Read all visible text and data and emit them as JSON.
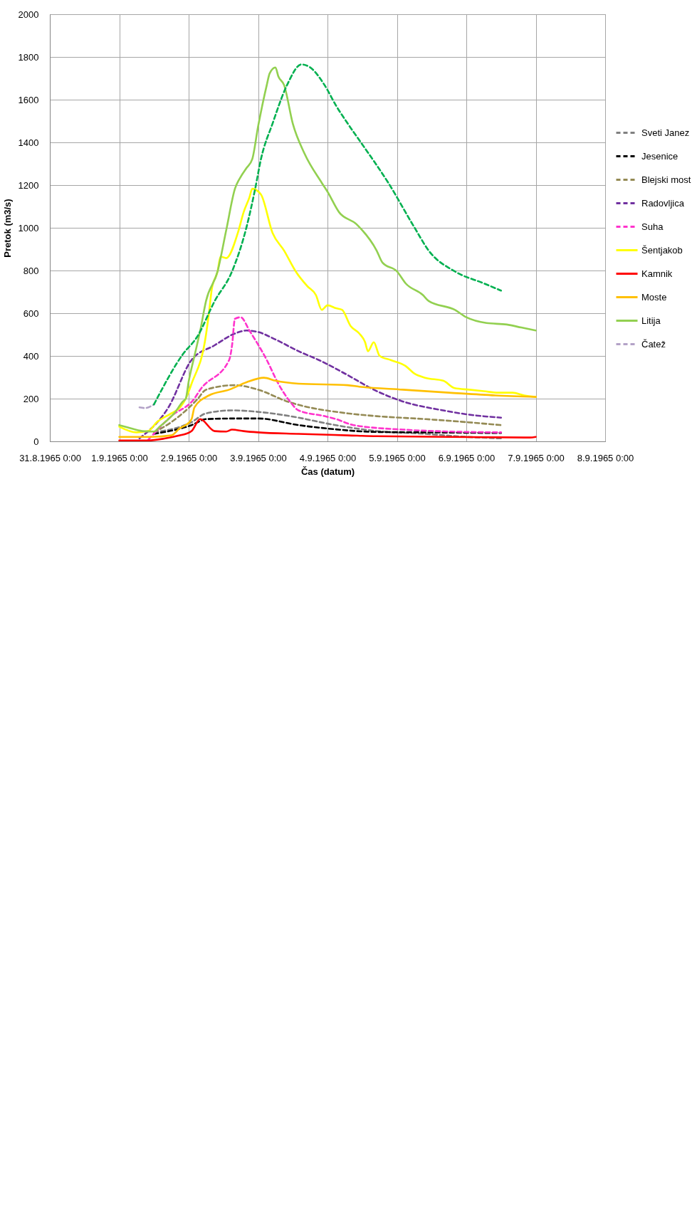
{
  "chart_data": {
    "type": "line",
    "xlabel": "Čas (datum)",
    "ylabel": "Pretok (m3/s)",
    "xlim": [
      "1965-08-31T00:00",
      "1965-09-08T00:00"
    ],
    "xticks": [
      {
        "value": "1965-08-31T00:00",
        "label": "31.8.1965 0:00"
      },
      {
        "value": "1965-09-01T00:00",
        "label": "1.9.1965 0:00"
      },
      {
        "value": "1965-09-02T00:00",
        "label": "2.9.1965 0:00"
      },
      {
        "value": "1965-09-03T00:00",
        "label": "3.9.1965 0:00"
      },
      {
        "value": "1965-09-04T00:00",
        "label": "4.9.1965 0:00"
      },
      {
        "value": "1965-09-05T00:00",
        "label": "5.9.1965 0:00"
      },
      {
        "value": "1965-09-06T00:00",
        "label": "6.9.1965 0:00"
      },
      {
        "value": "1965-09-07T00:00",
        "label": "7.9.1965 0:00"
      },
      {
        "value": "1965-09-08T00:00",
        "label": "8.9.1965 0:00"
      }
    ],
    "ylim": [
      0,
      2000
    ],
    "yticks": [
      0,
      200,
      400,
      600,
      800,
      1000,
      1200,
      1400,
      1600,
      1800,
      2000
    ],
    "grid": true,
    "legend": "right",
    "series": [
      {
        "name": "Sveti Janez",
        "color": "#808080",
        "line_style": "dashed",
        "x": [
          "1965-09-01T12:00",
          "1965-09-02T01:00",
          "1965-09-02T06:00",
          "1965-09-02T15:00",
          "1965-09-03T00:00",
          "1965-09-03T14:00",
          "1965-09-04T00:00",
          "1965-09-04T17:00",
          "1965-09-05T10:00",
          "1965-09-06T00:00",
          "1965-09-06T12:00"
        ],
        "values": [
          42,
          90,
          131,
          145,
          138,
          111,
          83,
          48,
          35,
          21,
          14
        ]
      },
      {
        "name": "Jesenice",
        "color": "#000000",
        "line_style": "dashed",
        "x": [
          "1965-09-01T12:00",
          "1965-09-02T01:00",
          "1965-09-02T06:00",
          "1965-09-02T15:00",
          "1965-09-03T00:00",
          "1965-09-03T14:00",
          "1965-09-04T00:00",
          "1965-09-04T17:00",
          "1965-09-05T10:00",
          "1965-09-06T12:00"
        ],
        "values": [
          35,
          76,
          104,
          107,
          107,
          76,
          60,
          44,
          42,
          39
        ]
      },
      {
        "name": "Blejski most",
        "color": "#948a54",
        "line_style": "dashed",
        "x": [
          "1965-09-01T12:00",
          "1965-09-01T18:00",
          "1965-09-02T03:00",
          "1965-09-02T06:00",
          "1965-09-02T16:00",
          "1965-09-03T00:00",
          "1965-09-03T10:00",
          "1965-09-04T07:00",
          "1965-09-04T17:00",
          "1965-09-05T10:00",
          "1965-09-06T00:00",
          "1965-09-06T12:00"
        ],
        "values": [
          42,
          90,
          197,
          242,
          263,
          242,
          187,
          131,
          118,
          104,
          90,
          76
        ]
      },
      {
        "name": "Radovljica",
        "color": "#7030a0",
        "line_style": "dashed",
        "x": [
          "1965-09-01T07:00",
          "1965-09-01T17:00",
          "1965-09-02T01:00",
          "1965-09-02T09:00",
          "1965-09-02T16:00",
          "1965-09-02T20:00",
          "1965-09-03T00:00",
          "1965-09-03T06:00",
          "1965-09-03T14:00",
          "1965-09-03T21:00",
          "1965-09-04T07:00",
          "1965-09-04T16:00",
          "1965-09-05T02:00",
          "1965-09-05T16:00",
          "1965-09-06T01:00",
          "1965-09-06T12:00"
        ],
        "values": [
          14,
          159,
          381,
          450,
          505,
          519,
          512,
          477,
          422,
          381,
          310,
          242,
          187,
          145,
          125,
          111
        ]
      },
      {
        "name": "Suha",
        "color": "#ff33cc",
        "line_style": "dashed",
        "x": [
          "1965-09-01T10:00",
          "1965-09-01T18:00",
          "1965-09-02T02:00",
          "1965-09-02T04:00",
          "1965-09-02T14:00",
          "1965-09-02T15:00",
          "1965-09-02T16:00",
          "1965-09-02T18:00",
          "1965-09-02T21:00",
          "1965-09-03T03:00",
          "1965-09-03T07:00",
          "1965-09-03T11:00",
          "1965-09-03T14:00",
          "1965-09-03T23:00",
          "1965-09-04T03:00",
          "1965-09-04T09:00",
          "1965-09-05T02:00",
          "1965-09-05T13:00",
          "1965-09-06T12:00"
        ],
        "values": [
          7,
          118,
          201,
          242,
          381,
          450,
          574,
          581,
          519,
          381,
          270,
          187,
          145,
          118,
          104,
          76,
          55,
          48,
          42
        ]
      },
      {
        "name": "Šentjakob",
        "color": "#ffff00",
        "line_style": "solid",
        "x": [
          "1965-09-01T00:00",
          "1965-09-01T06:00",
          "1965-09-01T10:00",
          "1965-09-01T13:00",
          "1965-09-01T18:00",
          "1965-09-01T21:00",
          "1965-09-01T23:00",
          "1965-09-02T01:00",
          "1965-09-02T06:00",
          "1965-09-02T07:00",
          "1965-09-02T08:00",
          "1965-09-02T10:00",
          "1965-09-02T11:00",
          "1965-09-02T13:00",
          "1965-09-02T17:00",
          "1965-09-02T19:00",
          "1965-09-02T21:00",
          "1965-09-02T22:00",
          "1965-09-03T01:00",
          "1965-09-03T05:00",
          "1965-09-03T09:00",
          "1965-09-03T13:00",
          "1965-09-03T17:00",
          "1965-09-03T20:00",
          "1965-09-03T22:00",
          "1965-09-04T00:00",
          "1965-09-04T03:00",
          "1965-09-04T05:00",
          "1965-09-04T08:00",
          "1965-09-04T11:00",
          "1965-09-04T13:00",
          "1965-09-04T14:00",
          "1965-09-04T16:00",
          "1965-09-04T18:00",
          "1965-09-04T22:00",
          "1965-09-05T03:00",
          "1965-09-05T06:00",
          "1965-09-05T10:00",
          "1965-09-05T16:00",
          "1965-09-05T20:00",
          "1965-09-06T01:00",
          "1965-09-06T06:00",
          "1965-09-06T11:00",
          "1965-09-06T16:00",
          "1965-09-06T20:00",
          "1965-09-07T00:00"
        ],
        "values": [
          69,
          42,
          48,
          90,
          131,
          159,
          200,
          270,
          500,
          600,
          713,
          796,
          865,
          858,
          976,
          1073,
          1142,
          1183,
          1156,
          976,
          893,
          796,
          727,
          685,
          616,
          637,
          623,
          616,
          540,
          505,
          464,
          422,
          464,
          401,
          380,
          353,
          318,
          297,
          284,
          249,
          242,
          235,
          228,
          228,
          215,
          208
        ]
      },
      {
        "name": "Kamnik",
        "color": "#ff0000",
        "line_style": "solid",
        "x": [
          "1965-09-01T00:00",
          "1965-09-01T10:00",
          "1965-09-01T16:00",
          "1965-09-01T21:00",
          "1965-09-01T23:00",
          "1965-09-02T01:00",
          "1965-09-02T04:00",
          "1965-09-02T09:00",
          "1965-09-02T13:00",
          "1965-09-02T15:00",
          "1965-09-02T19:00",
          "1965-09-03T00:00",
          "1965-09-03T14:00",
          "1965-09-04T07:00",
          "1965-09-04T17:00",
          "1965-09-05T18:00",
          "1965-09-06T22:00",
          "1965-09-07T00:00"
        ],
        "values": [
          4,
          4,
          14,
          28,
          35,
          48,
          104,
          48,
          46,
          55,
          48,
          42,
          35,
          28,
          24,
          21,
          18,
          21
        ]
      },
      {
        "name": "Moste",
        "color": "#ffc000",
        "line_style": "solid",
        "x": [
          "1965-09-01T00:00",
          "1965-09-01T11:00",
          "1965-09-01T18:00",
          "1965-09-01T21:00",
          "1965-09-01T23:00",
          "1965-09-02T01:00",
          "1965-09-02T02:00",
          "1965-09-02T07:00",
          "1965-09-02T14:00",
          "1965-09-02T20:00",
          "1965-09-03T02:00",
          "1965-09-03T06:00",
          "1965-09-03T14:00",
          "1965-09-04T07:00",
          "1965-09-04T11:00",
          "1965-09-05T02:00",
          "1965-09-05T18:00",
          "1965-09-06T10:00",
          "1965-09-07T00:00"
        ],
        "values": [
          21,
          21,
          28,
          62,
          76,
          104,
          159,
          215,
          242,
          277,
          298,
          284,
          270,
          263,
          256,
          242,
          228,
          215,
          208
        ]
      },
      {
        "name": "Litija",
        "color": "#92d050",
        "line_style": "solid",
        "x": [
          "1965-09-01T00:00",
          "1965-09-01T03:00",
          "1965-09-01T08:00",
          "1965-09-01T12:00",
          "1965-09-01T14:00",
          "1965-09-01T17:00",
          "1965-09-01T19:00",
          "1965-09-01T22:00",
          "1965-09-01T23:00",
          "1965-09-02T00:00",
          "1965-09-02T02:00",
          "1965-09-02T04:00",
          "1965-09-02T06:00",
          "1965-09-02T10:00",
          "1965-09-02T13:00",
          "1965-09-02T16:00",
          "1965-09-02T18:00",
          "1965-09-02T20:00",
          "1965-09-02T22:00",
          "1965-09-03T00:00",
          "1965-09-03T03:00",
          "1965-09-03T04:00",
          "1965-09-03T06:00",
          "1965-09-03T07:00",
          "1965-09-03T09:00",
          "1965-09-03T12:00",
          "1965-09-03T16:00",
          "1965-09-03T22:00",
          "1965-09-04T00:00",
          "1965-09-04T04:00",
          "1965-09-04T10:00",
          "1965-09-04T17:00",
          "1965-09-04T19:00",
          "1965-09-05T00:00",
          "1965-09-05T03:00",
          "1965-09-05T09:00",
          "1965-09-05T11:00",
          "1965-09-05T20:00",
          "1965-09-06T00:00",
          "1965-09-06T07:00",
          "1965-09-06T14:00",
          "1965-09-06T19:00",
          "1965-09-07T00:00"
        ],
        "values": [
          76,
          65,
          48,
          46,
          69,
          104,
          131,
          187,
          200,
          280,
          400,
          519,
          657,
          796,
          990,
          1183,
          1239,
          1280,
          1322,
          1474,
          1668,
          1723,
          1751,
          1709,
          1668,
          1488,
          1349,
          1211,
          1169,
          1073,
          1017,
          893,
          837,
          796,
          740,
          685,
          657,
          616,
          581,
          554,
          547,
          533,
          519
        ]
      },
      {
        "name": "Čatež",
        "color": "#b3a2c7",
        "line_style": "dashed",
        "x": [
          "1965-09-01T07:00",
          "1965-09-01T09:00",
          "1965-09-01T12:00"
        ],
        "values": [
          159,
          156,
          173
        ]
      },
      {
        "color": "#00b050",
        "line_style": "dashed",
        "x": [
          "1965-09-01T12:00",
          "1965-09-01T22:00",
          "1965-09-02T03:00",
          "1965-09-02T09:00",
          "1965-09-02T15:00",
          "1965-09-02T20:00",
          "1965-09-02T23:00",
          "1965-09-03T01:00",
          "1965-09-03T05:00",
          "1965-09-03T10:00",
          "1965-09-03T15:00",
          "1965-09-03T18:00",
          "1965-09-03T23:00",
          "1965-09-04T03:00",
          "1965-09-04T07:00",
          "1965-09-04T12:00",
          "1965-09-04T21:00",
          "1965-09-05T06:00",
          "1965-09-05T11:00",
          "1965-09-05T20:00",
          "1965-09-06T06:00",
          "1965-09-06T12:00"
        ],
        "values": [
          173,
          408,
          491,
          657,
          796,
          1003,
          1183,
          1322,
          1488,
          1668,
          1765,
          1751,
          1668,
          1571,
          1488,
          1391,
          1211,
          1003,
          893,
          796,
          740,
          706
        ]
      }
    ]
  }
}
